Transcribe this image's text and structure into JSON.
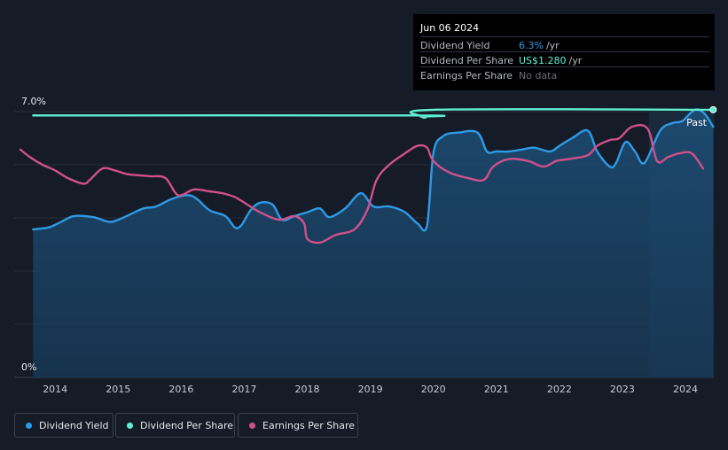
{
  "tooltip": {
    "date": "Jun 06 2024",
    "rows": [
      {
        "label": "Dividend Yield",
        "value": "6.3%",
        "unit": "/yr",
        "color": "#2e9ae6"
      },
      {
        "label": "Dividend Per Share",
        "value": "US$1.280",
        "unit": "/yr",
        "color": "#5ef0d3"
      },
      {
        "label": "Earnings Per Share",
        "value": "No data",
        "unit": "",
        "color": "#6c717a"
      }
    ]
  },
  "past_label": "Past",
  "legend": [
    {
      "label": "Dividend Yield",
      "color": "#2e9ae6"
    },
    {
      "label": "Dividend Per Share",
      "color": "#5ef0d3"
    },
    {
      "label": "Earnings Per Share",
      "color": "#d0508a"
    }
  ],
  "chart_data": {
    "type": "line",
    "ylim": [
      0,
      7
    ],
    "y_tick_labels": [
      "7.0%",
      "0%"
    ],
    "x_tick_labels": [
      "2014",
      "2015",
      "2016",
      "2017",
      "2018",
      "2019",
      "2020",
      "2021",
      "2022",
      "2023",
      "2024"
    ],
    "xlim": [
      2013.35,
      2024.45
    ],
    "forecast_start": 2023.42,
    "series": [
      {
        "name": "Dividend Yield",
        "color": "#2e9ae6",
        "area": true,
        "x": [
          2013.65,
          2013.9,
          2014.1,
          2014.3,
          2014.6,
          2014.85,
          2015.0,
          2015.2,
          2015.4,
          2015.6,
          2015.85,
          2016.1,
          2016.25,
          2016.45,
          2016.7,
          2016.85,
          2016.95,
          2017.1,
          2017.25,
          2017.45,
          2017.6,
          2017.8,
          2018.0,
          2018.2,
          2018.35,
          2018.6,
          2018.85,
          2019.05,
          2019.3,
          2019.55,
          2019.75,
          2019.9,
          2020.0,
          2020.15,
          2020.4,
          2020.7,
          2020.85,
          2021.0,
          2021.2,
          2021.4,
          2021.6,
          2021.85,
          2022.0,
          2022.2,
          2022.45,
          2022.6,
          2022.8,
          2022.9,
          2023.05,
          2023.2,
          2023.35,
          2023.6,
          2023.8,
          2023.95,
          2024.15,
          2024.3,
          2024.44
        ],
        "values": [
          3.9,
          3.95,
          4.1,
          4.25,
          4.22,
          4.1,
          4.15,
          4.3,
          4.45,
          4.5,
          4.7,
          4.8,
          4.7,
          4.4,
          4.25,
          3.95,
          4.0,
          4.4,
          4.6,
          4.55,
          4.15,
          4.25,
          4.35,
          4.45,
          4.22,
          4.45,
          4.85,
          4.5,
          4.5,
          4.35,
          4.05,
          4.0,
          5.9,
          6.35,
          6.45,
          6.45,
          5.95,
          5.95,
          5.95,
          6.0,
          6.05,
          5.95,
          6.1,
          6.3,
          6.5,
          5.95,
          5.55,
          5.65,
          6.2,
          5.95,
          5.65,
          6.5,
          6.7,
          6.75,
          7.05,
          6.95,
          6.6
        ]
      },
      {
        "name": "Dividend Per Share",
        "color": "#5ef0d3",
        "x": [
          2013.65,
          2019.7,
          2019.8,
          2019.88,
          2020.0,
          2024.44
        ],
        "values": [
          6.9,
          6.9,
          6.87,
          6.85,
          7.05,
          7.05
        ]
      },
      {
        "name": "Earnings Per Share",
        "color": "#d0508a",
        "x": [
          2013.45,
          2013.6,
          2013.8,
          2014.0,
          2014.2,
          2014.45,
          2014.55,
          2014.75,
          2014.95,
          2015.15,
          2015.5,
          2015.75,
          2015.95,
          2016.2,
          2016.45,
          2016.65,
          2016.85,
          2017.05,
          2017.25,
          2017.55,
          2017.8,
          2017.95,
          2018.0,
          2018.2,
          2018.45,
          2018.75,
          2018.95,
          2019.1,
          2019.3,
          2019.55,
          2019.75,
          2019.9,
          2020.0,
          2020.25,
          2020.55,
          2020.8,
          2020.95,
          2021.2,
          2021.5,
          2021.75,
          2021.95,
          2022.15,
          2022.45,
          2022.6,
          2022.8,
          2022.95,
          2023.15,
          2023.4,
          2023.55,
          2023.72,
          2023.9,
          2024.1,
          2024.28
        ],
        "values": [
          6.0,
          5.8,
          5.6,
          5.45,
          5.25,
          5.1,
          5.2,
          5.5,
          5.45,
          5.35,
          5.3,
          5.25,
          4.8,
          4.95,
          4.9,
          4.85,
          4.75,
          4.55,
          4.35,
          4.15,
          4.25,
          4.05,
          3.65,
          3.55,
          3.75,
          3.9,
          4.4,
          5.2,
          5.6,
          5.9,
          6.1,
          6.05,
          5.7,
          5.4,
          5.25,
          5.2,
          5.55,
          5.75,
          5.7,
          5.55,
          5.7,
          5.75,
          5.85,
          6.1,
          6.25,
          6.3,
          6.6,
          6.55,
          5.7,
          5.8,
          5.9,
          5.9,
          5.5
        ]
      }
    ]
  }
}
